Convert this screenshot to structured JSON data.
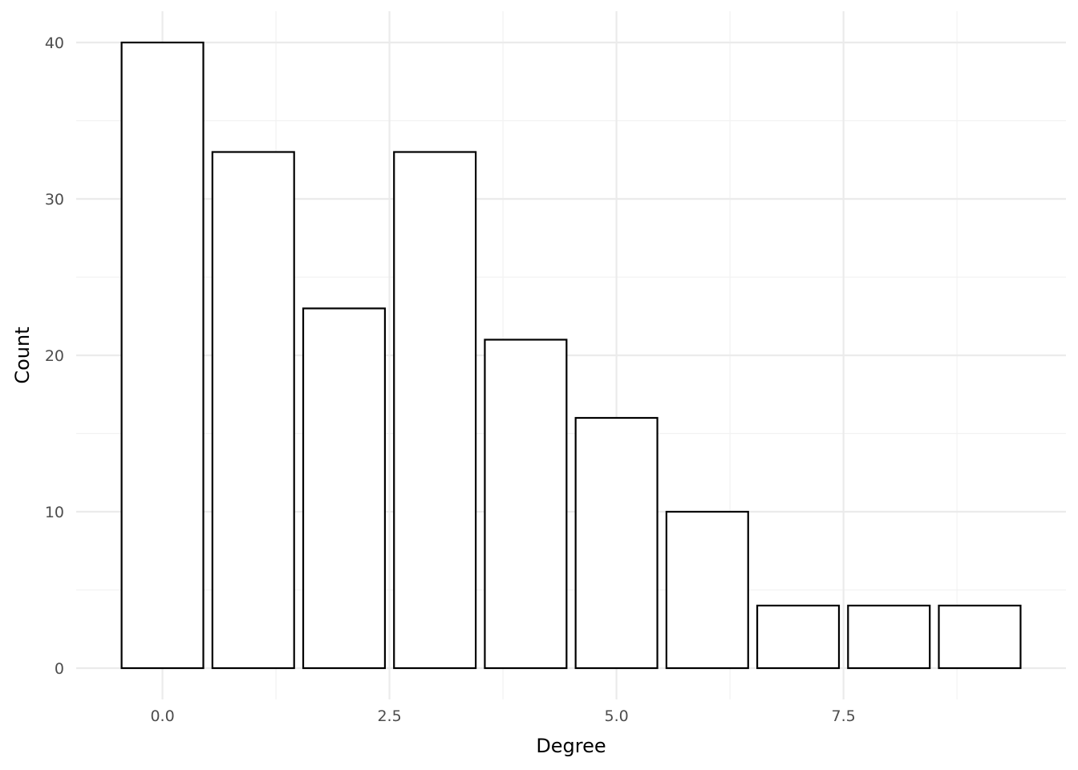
{
  "chart_data": {
    "type": "bar",
    "x": [
      0,
      1,
      2,
      3,
      4,
      5,
      6,
      7,
      8,
      9
    ],
    "values": [
      40,
      33,
      23,
      33,
      21,
      16,
      10,
      4,
      4,
      4
    ],
    "bar_width": 0.9,
    "xlabel": "Degree",
    "ylabel": "Count",
    "xlim": [
      -0.95,
      9.95
    ],
    "ylim": [
      -2,
      42
    ],
    "x_ticks": [
      0,
      2.5,
      5,
      7.5
    ],
    "x_tick_labels": [
      "0.0",
      "2.5",
      "5.0",
      "7.5"
    ],
    "x_minor_ticks": [
      1.25,
      3.75,
      6.25,
      8.75
    ],
    "y_ticks": [
      0,
      10,
      20,
      30,
      40
    ],
    "y_tick_labels": [
      "0",
      "10",
      "20",
      "30",
      "40"
    ],
    "y_minor_ticks": [
      5,
      15,
      25,
      35
    ],
    "grid": true,
    "legend": "none",
    "bar_fill": "#ffffff",
    "bar_stroke": "#000000",
    "grid_color": "#ebebeb"
  }
}
